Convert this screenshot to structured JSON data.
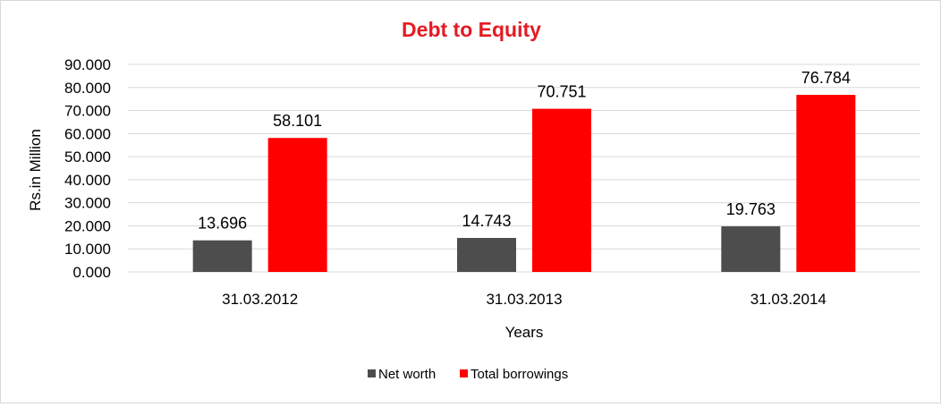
{
  "chart_data": {
    "type": "bar",
    "title": "Debt to Equity",
    "xlabel": "Years",
    "ylabel": "Rs.in Million",
    "categories": [
      "31.03.2012",
      "31.03.2013",
      "31.03.2014"
    ],
    "series": [
      {
        "name": "Net worth",
        "values": [
          13.696,
          14.743,
          19.763
        ],
        "labels": [
          "13.696",
          "14.743",
          "19.763"
        ],
        "color": "#4d4d4d"
      },
      {
        "name": "Total borrowings",
        "values": [
          58.101,
          70.751,
          76.784
        ],
        "labels": [
          "58.101",
          "70.751",
          "76.784"
        ],
        "color": "#ff0000"
      }
    ],
    "yticks": [
      "0.000",
      "10.000",
      "20.000",
      "30.000",
      "40.000",
      "50.000",
      "60.000",
      "70.000",
      "80.000",
      "90.000"
    ],
    "ylim": [
      0,
      90
    ],
    "grid": true,
    "legend": "bottom",
    "colors": {
      "title": "#e31b23",
      "grid": "#d9d9d9"
    }
  }
}
